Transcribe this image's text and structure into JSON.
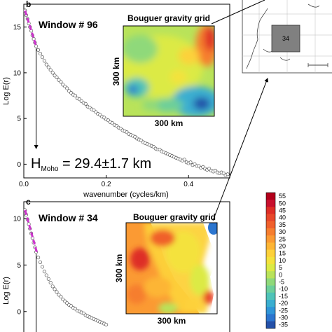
{
  "chart_data": [
    {
      "type": "scatter",
      "panel": "b",
      "window_title": "Window # 96",
      "xlabel": "wavenumber (cycles/km)",
      "ylabel": "Log E(r)",
      "x_ticks": [
        "0.0",
        "0.2",
        "0.4"
      ],
      "y_ticks": [
        "0",
        "5",
        "10",
        "15"
      ],
      "xlim": [
        0.0,
        0.5
      ],
      "ylim": [
        -1.5,
        17.5
      ],
      "grid": false,
      "series": [
        {
          "style": "open-circles",
          "x": [
            0.003,
            0.006,
            0.009,
            0.012,
            0.015,
            0.018,
            0.021,
            0.024,
            0.027,
            0.03,
            0.035,
            0.04,
            0.045,
            0.05,
            0.055,
            0.06,
            0.065,
            0.07,
            0.075,
            0.08,
            0.085,
            0.09,
            0.095,
            0.1,
            0.105,
            0.11,
            0.115,
            0.12,
            0.125,
            0.13,
            0.135,
            0.14,
            0.145,
            0.15,
            0.155,
            0.16,
            0.165,
            0.17,
            0.175,
            0.18,
            0.185,
            0.19,
            0.195,
            0.2,
            0.205,
            0.21,
            0.215,
            0.22,
            0.225,
            0.23,
            0.235,
            0.24,
            0.245,
            0.25,
            0.255,
            0.26,
            0.265,
            0.27,
            0.275,
            0.28,
            0.285,
            0.29,
            0.295,
            0.3,
            0.305,
            0.31,
            0.315,
            0.32,
            0.325,
            0.33,
            0.335,
            0.34,
            0.345,
            0.35,
            0.355,
            0.36,
            0.365,
            0.37,
            0.375,
            0.38,
            0.385,
            0.39,
            0.395,
            0.4,
            0.405,
            0.41,
            0.415,
            0.42,
            0.425,
            0.43,
            0.435,
            0.44,
            0.445,
            0.45,
            0.455,
            0.46,
            0.465,
            0.47,
            0.475,
            0.48,
            0.485,
            0.49,
            0.495
          ],
          "y": [
            16.8,
            16.3,
            15.9,
            15.4,
            15.0,
            14.6,
            14.1,
            13.7,
            13.3,
            12.9,
            12.5,
            12.1,
            11.7,
            11.3,
            10.9,
            10.6,
            10.3,
            10.0,
            9.7,
            9.5,
            9.2,
            9.0,
            8.7,
            8.5,
            8.3,
            8.0,
            7.8,
            7.6,
            7.5,
            7.2,
            7.1,
            6.9,
            6.7,
            6.6,
            6.3,
            6.2,
            6.0,
            5.9,
            5.7,
            5.5,
            5.4,
            5.2,
            5.1,
            4.9,
            4.8,
            4.6,
            4.5,
            4.3,
            4.2,
            4.0,
            3.9,
            3.7,
            3.6,
            3.5,
            3.3,
            3.2,
            3.1,
            3.0,
            2.8,
            2.7,
            2.6,
            2.4,
            2.3,
            2.2,
            2.1,
            2.0,
            1.9,
            1.7,
            1.6,
            1.6,
            1.4,
            1.3,
            1.2,
            1.1,
            1.0,
            0.9,
            0.8,
            0.7,
            0.6,
            0.5,
            0.4,
            0.5,
            0.2,
            0.1,
            0.2,
            -0.1,
            0.0,
            -0.2,
            -0.2,
            -0.4,
            -0.3,
            -0.5,
            -0.6,
            -0.5,
            -0.7,
            -0.8,
            -0.7,
            -0.9,
            -1.0,
            -0.9,
            -1.0,
            -1.2,
            -1.1
          ]
        },
        {
          "style": "dashed-fit",
          "color": "#cc33cc",
          "x": [
            0.003,
            0.03
          ],
          "y": [
            16.8,
            12.9
          ]
        }
      ],
      "annotation": {
        "H": "H",
        "subscript": "Moho",
        "value": " = 29.4±1.7 km",
        "arrow_x": 0.03
      },
      "inset": {
        "title": "Bouguer gravity grid",
        "x_label": "300 km",
        "y_label": "300 km"
      }
    },
    {
      "type": "scatter",
      "panel": "c",
      "window_title": "Window # 34",
      "xlabel": "",
      "ylabel": "Log E(r)",
      "x_ticks": [],
      "y_ticks": [
        "0",
        "5",
        "10"
      ],
      "xlim": [
        0.0,
        0.5
      ],
      "ylim": [
        -2.5,
        11.8
      ],
      "grid": false,
      "series": [
        {
          "style": "open-circles",
          "x": [
            0.003,
            0.006,
            0.009,
            0.012,
            0.015,
            0.018,
            0.021,
            0.024,
            0.027,
            0.03,
            0.035,
            0.04,
            0.045,
            0.05,
            0.055,
            0.06,
            0.065,
            0.07,
            0.075,
            0.08,
            0.085,
            0.09,
            0.095,
            0.1,
            0.105,
            0.11,
            0.115,
            0.12,
            0.125,
            0.13,
            0.135,
            0.14,
            0.145,
            0.15,
            0.155,
            0.16,
            0.165,
            0.17,
            0.175,
            0.18,
            0.185,
            0.19,
            0.195,
            0.2
          ],
          "y": [
            10.9,
            10.4,
            9.9,
            9.4,
            8.9,
            8.4,
            7.9,
            7.4,
            6.9,
            6.4,
            5.8,
            5.3,
            4.8,
            4.3,
            3.9,
            3.5,
            3.1,
            2.7,
            2.4,
            2.1,
            1.8,
            1.6,
            1.3,
            1.1,
            0.9,
            0.7,
            0.6,
            0.4,
            0.3,
            0.1,
            0.0,
            -0.1,
            -0.2,
            -0.4,
            -0.5,
            -0.6,
            -0.7,
            -0.8,
            -0.9,
            -1.0,
            -1.1,
            -1.2,
            -1.3,
            -1.4
          ]
        },
        {
          "style": "dashed-fit",
          "color": "#cc33cc",
          "x": [
            0.003,
            0.032
          ],
          "y": [
            10.9,
            6.3
          ]
        }
      ],
      "annotation": {
        "arrow_x": 0.03
      },
      "inset": {
        "title": "Bouguer gravity grid",
        "x_label": "300 km",
        "y_label": "300 km"
      }
    }
  ],
  "colorbar": {
    "labels": [
      "55",
      "50",
      "45",
      "40",
      "35",
      "30",
      "25",
      "20",
      "15",
      "10",
      "5",
      "0",
      "-5",
      "-10",
      "-15",
      "-20",
      "-25",
      "-30",
      "-35"
    ],
    "colors": [
      "#b3001b",
      "#c8102e",
      "#de2d26",
      "#e8472a",
      "#f0602c",
      "#f67e2f",
      "#fb9a33",
      "#fdb535",
      "#fdd13a",
      "#f4e23c",
      "#dcea45",
      "#b9e35a",
      "#8fd97a",
      "#6dcf9a",
      "#4fc3b8",
      "#3aaed0",
      "#2f95d8",
      "#2b75cf",
      "#2450a8"
    ]
  },
  "location_map": {
    "window_label": "34"
  }
}
